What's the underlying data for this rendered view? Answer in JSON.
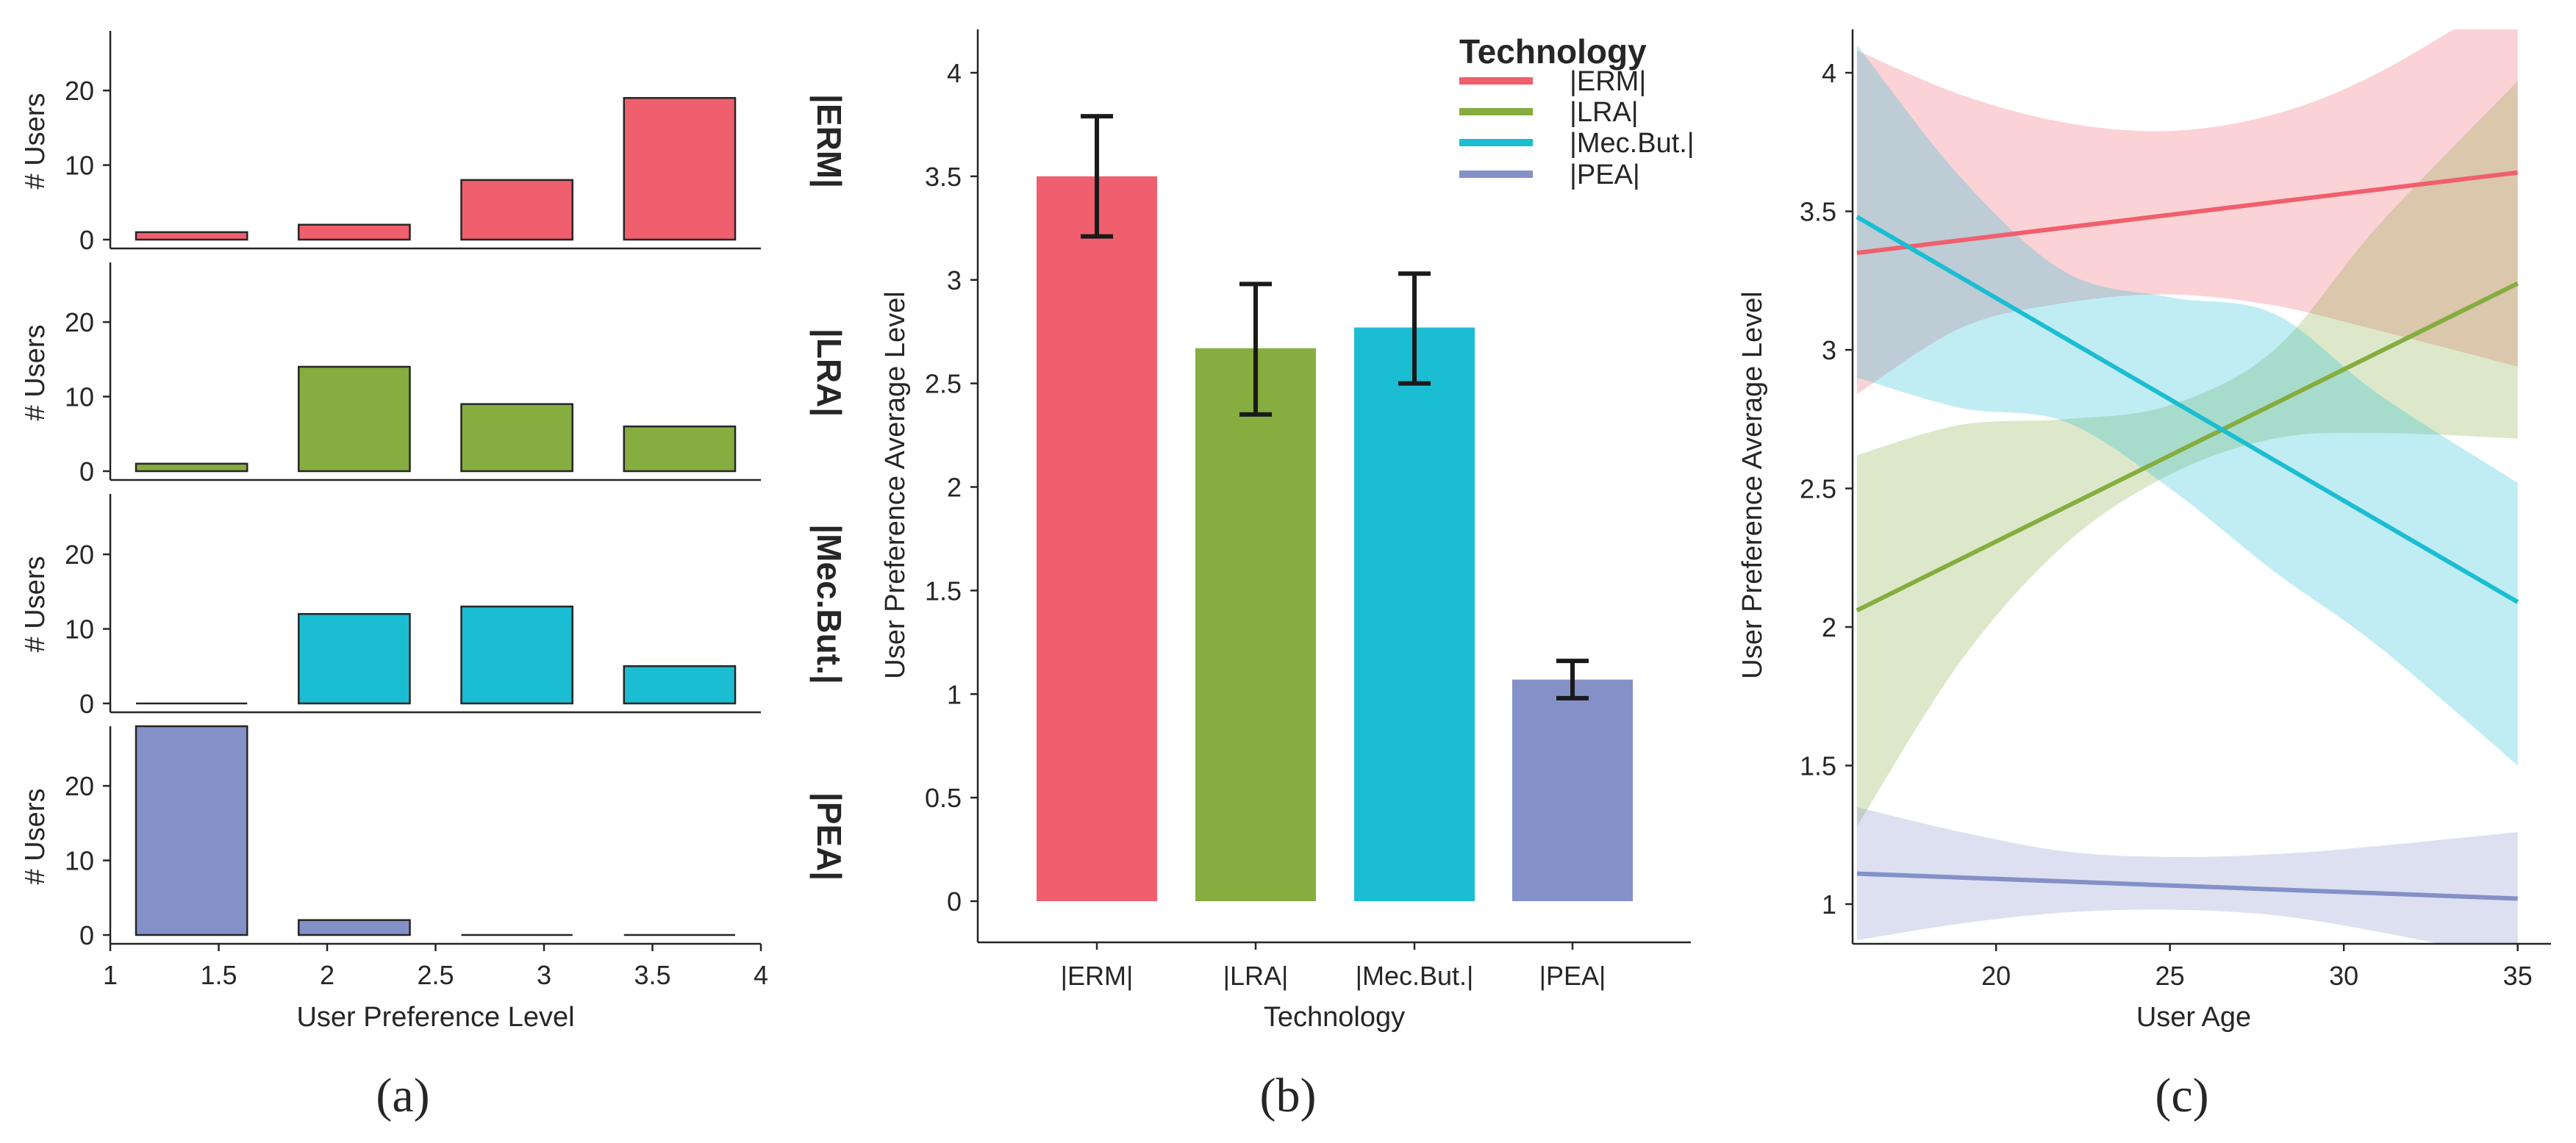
{
  "colors": {
    "ERM": "#f05f6d",
    "LRA": "#85ad3f",
    "MecBut": "#1bbdd3",
    "PEA": "#8490c8",
    "axis": "#262626"
  },
  "panels": {
    "a_label": "(a)",
    "b_label": "(b)",
    "c_label": "(c)"
  },
  "chart_data": [
    {
      "id": "a",
      "type": "bar",
      "subtype": "faceted-histogram",
      "xlabel": "User Preference Level",
      "ylabel": "# Users",
      "xlim": [
        1,
        4
      ],
      "ylim": [
        0,
        28
      ],
      "xticks": [
        "1",
        "1.5",
        "2",
        "2.5",
        "3",
        "3.5",
        "4"
      ],
      "yticks": [
        "0",
        "10",
        "20"
      ],
      "bins": [
        [
          1.0,
          1.75
        ],
        [
          1.75,
          2.5
        ],
        [
          2.5,
          3.25
        ],
        [
          3.25,
          4.0
        ]
      ],
      "facets": [
        {
          "name": "|ERM|",
          "color_key": "ERM",
          "counts": [
            1,
            2,
            8,
            19
          ]
        },
        {
          "name": "|LRA|",
          "color_key": "LRA",
          "counts": [
            1,
            14,
            9,
            6
          ]
        },
        {
          "name": "|Mec.But.|",
          "color_key": "MecBut",
          "counts": [
            0,
            12,
            13,
            5
          ]
        },
        {
          "name": "|PEA|",
          "color_key": "PEA",
          "counts": [
            28,
            2,
            0,
            0
          ]
        }
      ]
    },
    {
      "id": "b",
      "type": "bar",
      "xlabel": "Technology",
      "ylabel": "User Preference Average Level",
      "ylim": [
        0,
        4.2
      ],
      "yticks": [
        "0",
        "0.5",
        "1",
        "1.5",
        "2",
        "2.5",
        "3",
        "3.5",
        "4"
      ],
      "categories": [
        "|ERM|",
        "|LRA|",
        "|Mec.But.|",
        "|PEA|"
      ],
      "values": [
        3.5,
        2.67,
        2.77,
        1.07
      ],
      "error_low": [
        3.21,
        2.35,
        2.5,
        0.98
      ],
      "error_high": [
        3.79,
        2.98,
        3.03,
        1.16
      ],
      "legend": {
        "title": "Technology",
        "entries": [
          "|ERM|",
          "|LRA|",
          "|Mec.But.|",
          "|PEA|"
        ],
        "placement": "top-right"
      }
    },
    {
      "id": "c",
      "type": "line",
      "subtype": "regression-with-confidence-band",
      "xlabel": "User Age",
      "ylabel": "User Preference Average Level",
      "xlim": [
        15.6,
        36
      ],
      "ylim": [
        0.85,
        4.15
      ],
      "xticks": [
        "20",
        "25",
        "30",
        "35"
      ],
      "yticks": [
        "1",
        "1.5",
        "2",
        "2.5",
        "3",
        "3.5",
        "4"
      ],
      "series": [
        {
          "name": "|ERM|",
          "color_key": "ERM",
          "x": [
            16,
            25,
            35
          ],
          "y": [
            3.35,
            3.49,
            3.64
          ],
          "band_x": [
            16,
            19,
            22,
            25,
            28,
            31,
            35
          ],
          "band_low": [
            2.84,
            3.08,
            3.17,
            3.2,
            3.16,
            3.07,
            2.94
          ],
          "band_high": [
            4.08,
            3.92,
            3.82,
            3.79,
            3.85,
            4.0,
            4.3
          ]
        },
        {
          "name": "|LRA|",
          "color_key": "LRA",
          "x": [
            16,
            25,
            35
          ],
          "y": [
            2.06,
            2.63,
            3.24
          ],
          "band_x": [
            16,
            19,
            22,
            25,
            28,
            31,
            35
          ],
          "band_low": [
            1.28,
            1.88,
            2.3,
            2.55,
            2.68,
            2.7,
            2.68
          ],
          "band_high": [
            2.62,
            2.73,
            2.75,
            2.8,
            3.0,
            3.45,
            3.97
          ]
        },
        {
          "name": "|Mec.But.|",
          "color_key": "MecBut",
          "x": [
            16,
            25,
            35
          ],
          "y": [
            3.48,
            2.8,
            2.09
          ],
          "band_x": [
            16,
            19,
            22,
            25,
            28,
            31,
            35
          ],
          "band_low": [
            2.9,
            2.79,
            2.74,
            2.5,
            2.2,
            1.93,
            1.5
          ],
          "band_high": [
            4.1,
            3.62,
            3.28,
            3.19,
            3.13,
            2.84,
            2.52
          ]
        },
        {
          "name": "|PEA|",
          "color_key": "PEA",
          "x": [
            16,
            25,
            35
          ],
          "y": [
            1.11,
            1.07,
            1.02
          ],
          "band_x": [
            16,
            19,
            22,
            25,
            28,
            31,
            35
          ],
          "band_low": [
            0.87,
            0.93,
            0.97,
            0.98,
            0.96,
            0.9,
            0.8
          ],
          "band_high": [
            1.35,
            1.26,
            1.19,
            1.17,
            1.18,
            1.21,
            1.26
          ]
        }
      ]
    }
  ]
}
